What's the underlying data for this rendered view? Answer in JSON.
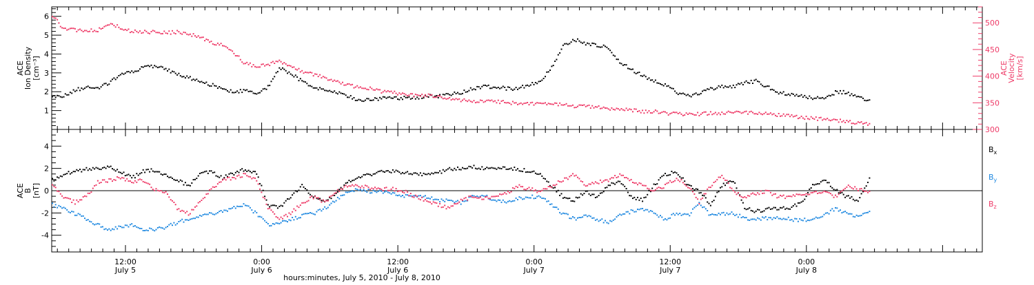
{
  "figure": {
    "xlabel": "hours:minutes, July  5, 2010 - July  8, 2010",
    "time_ticks": [
      {
        "hours": 12,
        "time": "12:00",
        "date": "July 5"
      },
      {
        "hours": 24,
        "time": "0:00",
        "date": "July 6"
      },
      {
        "hours": 36,
        "time": "12:00",
        "date": "July 6"
      },
      {
        "hours": 48,
        "time": "0:00",
        "date": "July 7"
      },
      {
        "hours": 60,
        "time": "12:00",
        "date": "July 7"
      },
      {
        "hours": 72,
        "time": "0:00",
        "date": "July 8"
      }
    ],
    "colors": {
      "black": "#000000",
      "red": "#ee3a67",
      "blue": "#1e88e0"
    }
  },
  "chart_data": [
    {
      "type": "scatter",
      "panel": "top",
      "xlim": [
        5.5,
        87.5
      ],
      "ylabel_left": [
        "ACE",
        "Ion Density",
        "[cm⁻³]"
      ],
      "ylim_left": [
        0,
        6.5
      ],
      "yticks_left": [
        1,
        2,
        3,
        4,
        5,
        6
      ],
      "ylabel_right": [
        "ACE",
        "Velocity",
        "[km/s]"
      ],
      "ylim_right": [
        300,
        530
      ],
      "yticks_right": [
        300,
        350,
        400,
        450,
        500
      ],
      "series": [
        {
          "axis": "left",
          "color": "black",
          "x": [
            5.5,
            6.5,
            7.5,
            8.5,
            9.5,
            10.5,
            11.5,
            12.5,
            13.5,
            14.5,
            15.5,
            16.5,
            17.5,
            18.5,
            19.5,
            20.5,
            21.5,
            22.5,
            23.5,
            24.5,
            25.5,
            26.5,
            27.5,
            28.5,
            29.5,
            30.5,
            31.5,
            32.5,
            33.5,
            34.5,
            35.5,
            36.5,
            37.5,
            38.5,
            39.5,
            40.5,
            41.5,
            42.5,
            43.5,
            44.5,
            45.5,
            46.5,
            47.5,
            48.5,
            49.5,
            50.5,
            51.5,
            52.5,
            53.5,
            54.5,
            55.5,
            56.5,
            57.5,
            58.5,
            59.5,
            60.5,
            61.5,
            62.5,
            63.5,
            64.5,
            65.5,
            66.5,
            67.5,
            68.5,
            69.5,
            70.5,
            71.5,
            72.5,
            73.5,
            74.5,
            75.5,
            76.5,
            77.5
          ],
          "y": [
            1.8,
            1.8,
            2.1,
            2.3,
            2.2,
            2.5,
            2.9,
            3.1,
            3.3,
            3.4,
            3.2,
            3.0,
            2.8,
            2.6,
            2.4,
            2.2,
            2.0,
            2.1,
            1.9,
            2.3,
            3.3,
            3.0,
            2.6,
            2.3,
            2.1,
            2.0,
            1.8,
            1.6,
            1.6,
            1.7,
            1.7,
            1.7,
            1.7,
            1.8,
            1.8,
            1.9,
            2.0,
            2.2,
            2.3,
            2.3,
            2.2,
            2.2,
            2.4,
            2.6,
            3.3,
            4.5,
            4.8,
            4.6,
            4.5,
            4.4,
            3.6,
            3.2,
            2.9,
            2.6,
            2.4,
            2.0,
            1.8,
            1.9,
            2.2,
            2.3,
            2.3,
            2.5,
            2.6,
            2.3,
            2.0,
            1.9,
            1.8,
            1.7,
            1.7,
            2.0,
            2.0,
            1.7,
            1.6
          ]
        },
        {
          "axis": "right",
          "color": "red",
          "x": [
            5.5,
            6.5,
            7.5,
            8.5,
            9.5,
            10.5,
            11.5,
            12.5,
            13.5,
            14.5,
            15.5,
            16.5,
            17.5,
            18.5,
            19.5,
            20.5,
            21.5,
            22.5,
            23.5,
            24.5,
            25.5,
            26.5,
            27.5,
            28.5,
            29.5,
            30.5,
            31.5,
            32.5,
            33.5,
            34.5,
            35.5,
            36.5,
            37.5,
            38.5,
            39.5,
            40.5,
            41.5,
            42.5,
            43.5,
            44.5,
            45.5,
            46.5,
            47.5,
            48.5,
            49.5,
            50.5,
            51.5,
            52.5,
            53.5,
            54.5,
            55.5,
            56.5,
            57.5,
            58.5,
            59.5,
            60.5,
            61.5,
            62.5,
            63.5,
            64.5,
            65.5,
            66.5,
            67.5,
            68.5,
            69.5,
            70.5,
            71.5,
            72.5,
            73.5,
            74.5,
            75.5,
            76.5,
            77.5
          ],
          "y": [
            515,
            490,
            488,
            486,
            488,
            500,
            493,
            485,
            484,
            484,
            482,
            484,
            480,
            475,
            465,
            460,
            445,
            425,
            420,
            422,
            430,
            420,
            410,
            405,
            398,
            392,
            385,
            380,
            378,
            372,
            370,
            368,
            365,
            365,
            363,
            360,
            356,
            354,
            354,
            353,
            352,
            350,
            350,
            350,
            347,
            350,
            345,
            345,
            343,
            340,
            338,
            338,
            335,
            335,
            332,
            330,
            330,
            330,
            332,
            332,
            334,
            333,
            332,
            330,
            328,
            326,
            324,
            322,
            320,
            318,
            316,
            314,
            312
          ]
        }
      ]
    },
    {
      "type": "scatter",
      "panel": "bottom",
      "xlim": [
        5.5,
        87.5
      ],
      "ylabel_left": [
        "ACE",
        "B",
        "[nT]"
      ],
      "ylim": [
        -5.5,
        5.5
      ],
      "yticks": [
        -4,
        -2,
        0,
        2,
        4
      ],
      "legend": [
        {
          "label": "B",
          "sub": "x",
          "color": "black"
        },
        {
          "label": "B",
          "sub": "y",
          "color": "blue"
        },
        {
          "label": "B",
          "sub": "z",
          "color": "red"
        }
      ],
      "series": [
        {
          "name": "Bx",
          "color": "black",
          "x": [
            5.5,
            6.5,
            7.5,
            8.5,
            9.5,
            10.5,
            11.5,
            12.5,
            13.5,
            14.5,
            15.5,
            16.5,
            17.5,
            18.5,
            19.5,
            20.5,
            21.5,
            22.5,
            23.5,
            24.5,
            25.5,
            26.5,
            27.5,
            28.5,
            29.5,
            30.5,
            31.5,
            32.5,
            33.5,
            34.5,
            35.5,
            36.5,
            37.5,
            38.5,
            39.5,
            40.5,
            41.5,
            42.5,
            43.5,
            44.5,
            45.5,
            46.5,
            47.5,
            48.5,
            49.5,
            50.5,
            51.5,
            52.5,
            53.5,
            54.5,
            55.5,
            56.5,
            57.5,
            58.5,
            59.5,
            60.5,
            61.5,
            62.5,
            63.5,
            64.5,
            65.5,
            66.5,
            67.5,
            68.5,
            69.5,
            70.5,
            71.5,
            72.5,
            73.5,
            74.5,
            75.5,
            76.5,
            77.5
          ],
          "y": [
            1.0,
            1.5,
            1.8,
            2.0,
            2.0,
            2.2,
            1.8,
            1.2,
            1.8,
            1.9,
            1.5,
            1.0,
            0.5,
            1.6,
            1.8,
            1.2,
            1.6,
            2.0,
            1.6,
            -1.2,
            -1.5,
            -0.5,
            0.5,
            -0.5,
            -1.0,
            -0.2,
            0.8,
            1.3,
            1.5,
            1.8,
            1.8,
            1.7,
            1.5,
            1.6,
            1.7,
            2.0,
            2.1,
            2.2,
            2.1,
            2.1,
            2.1,
            2.0,
            1.8,
            1.5,
            0.5,
            -0.5,
            -0.8,
            0.0,
            -0.5,
            0.5,
            1.0,
            -0.5,
            -0.8,
            0.5,
            1.5,
            1.8,
            0.5,
            0.0,
            -1.2,
            0.5,
            1.0,
            -1.5,
            -1.8,
            -1.6,
            -1.5,
            -1.5,
            -1.0,
            0.5,
            1.0,
            0.2,
            -0.5,
            -0.8,
            1.2
          ]
        },
        {
          "name": "By",
          "color": "blue",
          "x": [
            5.5,
            6.5,
            7.5,
            8.5,
            9.5,
            10.5,
            11.5,
            12.5,
            13.5,
            14.5,
            15.5,
            16.5,
            17.5,
            18.5,
            19.5,
            20.5,
            21.5,
            22.5,
            23.5,
            24.5,
            25.5,
            26.5,
            27.5,
            28.5,
            29.5,
            30.5,
            31.5,
            32.5,
            33.5,
            34.5,
            35.5,
            36.5,
            37.5,
            38.5,
            39.5,
            40.5,
            41.5,
            42.5,
            43.5,
            44.5,
            45.5,
            46.5,
            47.5,
            48.5,
            49.5,
            50.5,
            51.5,
            52.5,
            53.5,
            54.5,
            55.5,
            56.5,
            57.5,
            58.5,
            59.5,
            60.5,
            61.5,
            62.5,
            63.5,
            64.5,
            65.5,
            66.5,
            67.5,
            68.5,
            69.5,
            70.5,
            71.5,
            72.5,
            73.5,
            74.5,
            75.5,
            76.5,
            77.5
          ],
          "y": [
            -1.2,
            -1.5,
            -2.0,
            -2.5,
            -3.0,
            -3.5,
            -3.2,
            -3.0,
            -3.5,
            -3.4,
            -3.2,
            -2.8,
            -2.5,
            -2.2,
            -2.0,
            -1.8,
            -1.5,
            -1.2,
            -2.0,
            -3.0,
            -2.8,
            -2.5,
            -2.2,
            -2.0,
            -1.5,
            -0.8,
            0.0,
            0.2,
            0.0,
            0.0,
            -0.2,
            -0.4,
            -0.5,
            -0.5,
            -0.8,
            -0.8,
            -1.0,
            -0.5,
            -0.3,
            -0.8,
            -1.0,
            -0.6,
            -0.5,
            -0.5,
            -1.2,
            -2.0,
            -2.5,
            -2.2,
            -2.5,
            -2.8,
            -2.2,
            -1.8,
            -1.5,
            -2.0,
            -2.5,
            -2.0,
            -2.2,
            -1.0,
            -2.2,
            -2.0,
            -2.0,
            -2.4,
            -2.5,
            -2.4,
            -2.4,
            -2.5,
            -2.6,
            -2.5,
            -2.2,
            -1.5,
            -2.0,
            -2.2,
            -1.8
          ]
        },
        {
          "name": "Bz",
          "color": "red",
          "x": [
            5.5,
            6.5,
            7.5,
            8.5,
            9.5,
            10.5,
            11.5,
            12.5,
            13.5,
            14.5,
            15.5,
            16.5,
            17.5,
            18.5,
            19.5,
            20.5,
            21.5,
            22.5,
            23.5,
            24.5,
            25.5,
            26.5,
            27.5,
            28.5,
            29.5,
            30.5,
            31.5,
            32.5,
            33.5,
            34.5,
            35.5,
            36.5,
            37.5,
            38.5,
            39.5,
            40.5,
            41.5,
            42.5,
            43.5,
            44.5,
            45.5,
            46.5,
            47.5,
            48.5,
            49.5,
            50.5,
            51.5,
            52.5,
            53.5,
            54.5,
            55.5,
            56.5,
            57.5,
            58.5,
            59.5,
            60.5,
            61.5,
            62.5,
            63.5,
            64.5,
            65.5,
            66.5,
            67.5,
            68.5,
            69.5,
            70.5,
            71.5,
            72.5,
            73.5,
            74.5,
            75.5,
            76.5,
            77.5
          ],
          "y": [
            0.5,
            -0.5,
            -1.0,
            -0.5,
            0.8,
            1.0,
            1.2,
            0.8,
            1.0,
            0.2,
            0.0,
            -1.5,
            -2.0,
            -1.0,
            0.2,
            1.0,
            1.2,
            1.5,
            1.0,
            -1.5,
            -2.5,
            -2.0,
            -1.0,
            -0.5,
            -1.0,
            0.0,
            0.5,
            0.5,
            0.3,
            0.2,
            0.2,
            0.0,
            -0.5,
            -0.8,
            -1.2,
            -1.5,
            -0.8,
            -0.5,
            -0.6,
            -0.5,
            -0.2,
            0.5,
            0.2,
            0.0,
            0.5,
            1.0,
            1.5,
            0.5,
            0.8,
            1.0,
            1.5,
            1.0,
            0.5,
            0.0,
            0.5,
            1.2,
            0.5,
            -1.0,
            0.5,
            1.5,
            0.0,
            -0.5,
            -0.2,
            0.0,
            -0.5,
            -0.5,
            -0.3,
            -0.2,
            0.0,
            -0.5,
            0.5,
            0.2,
            0.0
          ]
        }
      ]
    }
  ]
}
